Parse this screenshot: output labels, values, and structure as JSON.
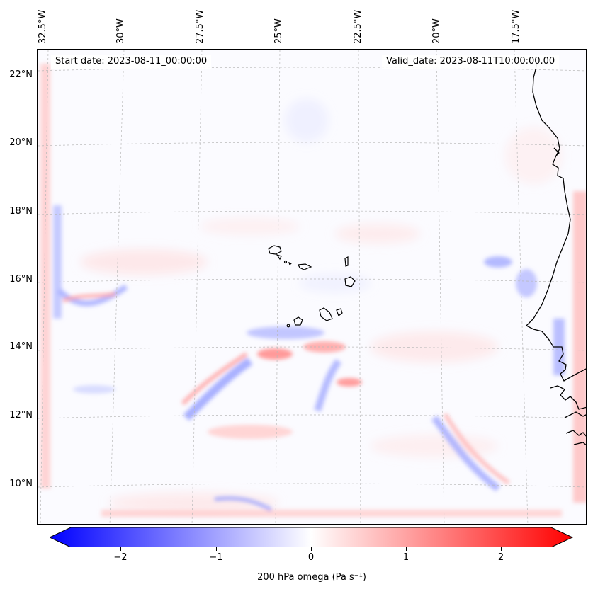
{
  "map": {
    "start_label": "Start date: 2023-08-11_00:00:00",
    "valid_label": "Valid_date: 2023-08-11T10:00:00.00",
    "lon_labels": [
      "32.5°W",
      "30°W",
      "27.5°W",
      "25°W",
      "22.5°W",
      "20°W",
      "17.5°W"
    ],
    "lat_labels": [
      "22°N",
      "20°N",
      "18°N",
      "16°N",
      "14°N",
      "12°N",
      "10°N"
    ],
    "field": "200 hPa omega",
    "units": "Pa s⁻¹"
  },
  "colorbar": {
    "title": "200 hPa omega (Pa s⁻¹)",
    "ticks": [
      "−2",
      "−1",
      "0",
      "1",
      "2"
    ],
    "min_value": -2.5,
    "max_value": 2.5,
    "cmap": "bwr",
    "colors": {
      "negative": "#0000ff",
      "zero": "#ffffff",
      "positive": "#ff0000"
    }
  },
  "colors": {
    "coastline": "#000000",
    "gridline": "#b0b0b0"
  }
}
